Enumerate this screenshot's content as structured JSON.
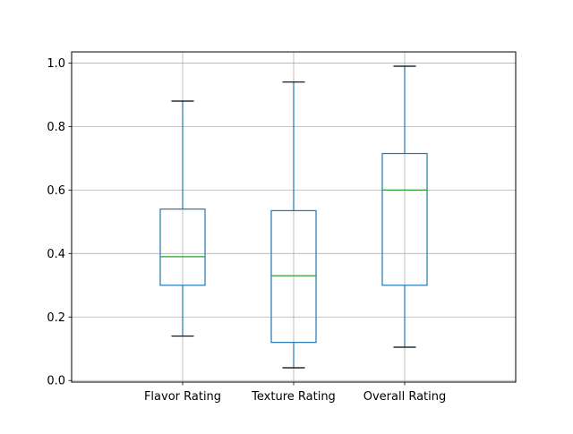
{
  "chart_data": {
    "type": "box",
    "title": "",
    "xlabel": "",
    "ylabel": "",
    "ylim": [
      -0.005,
      1.035
    ],
    "yticks": [
      0.0,
      0.2,
      0.4,
      0.6,
      0.8,
      1.0
    ],
    "ytick_labels": [
      "0.0",
      "0.2",
      "0.4",
      "0.6",
      "0.8",
      "1.0"
    ],
    "grid": true,
    "categories": [
      "Flavor Rating",
      "Texture Rating",
      "Overall Rating"
    ],
    "boxes": [
      {
        "whisker_low": 0.14,
        "q1": 0.3,
        "median": 0.39,
        "q3": 0.54,
        "whisker_high": 0.88
      },
      {
        "whisker_low": 0.04,
        "q1": 0.12,
        "median": 0.33,
        "q3": 0.535,
        "whisker_high": 0.94
      },
      {
        "whisker_low": 0.105,
        "q1": 0.3,
        "median": 0.6,
        "q3": 0.715,
        "whisker_high": 0.99
      }
    ],
    "colors": {
      "box": "#1f77b4",
      "median": "#2ca02c",
      "caps": "#000000",
      "grid": "#b0b0b0",
      "axes": "#000000"
    }
  }
}
